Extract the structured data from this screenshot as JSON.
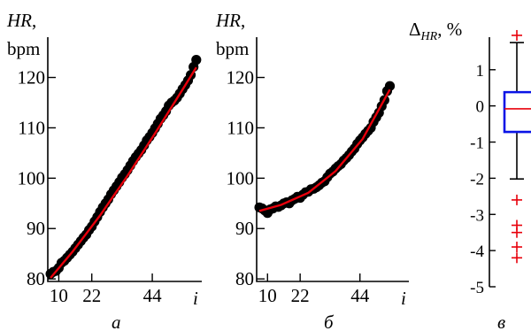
{
  "chart_data": [
    {
      "type": "scatter",
      "panel_label": "а",
      "ylabel_main": "HR",
      "ylabel_comma": ",",
      "ylabel_unit": "bpm",
      "xlabel": "i",
      "xlim": [
        6,
        62
      ],
      "ylim": [
        79.5,
        128
      ],
      "xticks": [
        10,
        22,
        44
      ],
      "yticks": [
        80,
        90,
        100,
        110,
        120
      ],
      "series": [
        {
          "style": "points",
          "color": "#000000",
          "x": [
            7,
            8,
            9,
            10,
            11,
            12,
            13,
            14,
            15,
            16,
            17,
            18,
            19,
            20,
            21,
            22,
            23,
            24,
            25,
            26,
            27,
            28,
            29,
            30,
            31,
            32,
            33,
            34,
            35,
            36,
            37,
            38,
            39,
            40,
            41,
            42,
            43,
            44,
            45,
            46,
            47,
            48,
            49,
            50,
            51,
            52,
            53,
            54,
            55,
            56,
            57,
            58,
            59,
            60
          ],
          "y": [
            81.0,
            81.4,
            81.6,
            82.2,
            83.2,
            83.6,
            84.2,
            84.8,
            85.4,
            86.1,
            86.8,
            87.5,
            88.2,
            88.8,
            89.7,
            90.4,
            91.4,
            92.3,
            93.3,
            94.2,
            95.0,
            95.8,
            96.8,
            97.6,
            98.4,
            99.2,
            100.1,
            100.8,
            101.6,
            102.5,
            103.4,
            104.2,
            104.9,
            105.6,
            106.5,
            107.5,
            108.2,
            109.0,
            109.9,
            110.8,
            111.8,
            112.5,
            113.3,
            114.4,
            115.0,
            115.4,
            116.0,
            116.8,
            117.7,
            118.5,
            119.4,
            120.5,
            122.1,
            123.5
          ]
        },
        {
          "style": "line",
          "color": "#e8000b",
          "x": [
            7,
            15,
            25,
            35,
            45,
            55,
            60
          ],
          "y": [
            80.2,
            85.4,
            92.6,
            100.5,
            108.9,
            117.6,
            122.0
          ]
        }
      ]
    },
    {
      "type": "scatter",
      "panel_label": "б",
      "ylabel_main": "HR",
      "ylabel_comma": ",",
      "ylabel_unit": "bpm",
      "xlabel": "i",
      "xlim": [
        6,
        62
      ],
      "ylim": [
        79.5,
        128
      ],
      "xticks": [
        10,
        22,
        44
      ],
      "yticks": [
        80,
        90,
        100,
        110,
        120
      ],
      "series": [
        {
          "style": "points",
          "color": "#000000",
          "x": [
            7,
            8,
            9,
            10,
            11,
            12,
            13,
            14,
            15,
            16,
            17,
            18,
            19,
            20,
            21,
            22,
            23,
            24,
            25,
            26,
            27,
            28,
            29,
            30,
            31,
            32,
            33,
            34,
            35,
            36,
            37,
            38,
            39,
            40,
            41,
            42,
            43,
            44,
            45,
            46,
            47,
            48,
            49,
            50,
            51,
            52,
            53,
            54,
            55
          ],
          "y": [
            94.2,
            94.0,
            93.6,
            93.1,
            93.8,
            94.0,
            94.4,
            94.3,
            94.6,
            95.0,
            95.2,
            95.0,
            95.6,
            95.9,
            96.3,
            96.1,
            96.7,
            97.2,
            97.3,
            97.8,
            97.9,
            98.2,
            98.6,
            99.1,
            99.4,
            100.2,
            100.9,
            101.3,
            101.9,
            102.4,
            102.8,
            103.5,
            104.0,
            104.6,
            105.3,
            105.9,
            106.8,
            107.5,
            108.1,
            108.8,
            109.4,
            110.0,
            111.2,
            112.1,
            113.0,
            114.3,
            115.5,
            117.3,
            118.3
          ]
        },
        {
          "style": "line",
          "color": "#e8000b",
          "x": [
            7,
            15,
            25,
            35,
            45,
            55
          ],
          "y": [
            93.5,
            94.7,
            97.1,
            101.4,
            107.8,
            117.6
          ]
        }
      ]
    },
    {
      "type": "box",
      "panel_label": "в",
      "ylabel_main": "Δ",
      "ylabel_sub": "HR",
      "ylabel_unit": ", %",
      "ylim": [
        -5,
        1.9
      ],
      "yticks": [
        -5,
        -4,
        -3,
        -2,
        -1,
        0,
        1
      ],
      "box": {
        "q1": -0.72,
        "median": -0.08,
        "q3": 0.38,
        "whisker_low": -2.02,
        "whisker_high": 1.75,
        "box_color": "#0a14e6",
        "median_color": "#e8000b"
      },
      "outliers": {
        "color": "#e8000b",
        "values": [
          1.95,
          -2.6,
          -3.3,
          -3.5,
          -3.9,
          -4.2
        ]
      }
    }
  ]
}
